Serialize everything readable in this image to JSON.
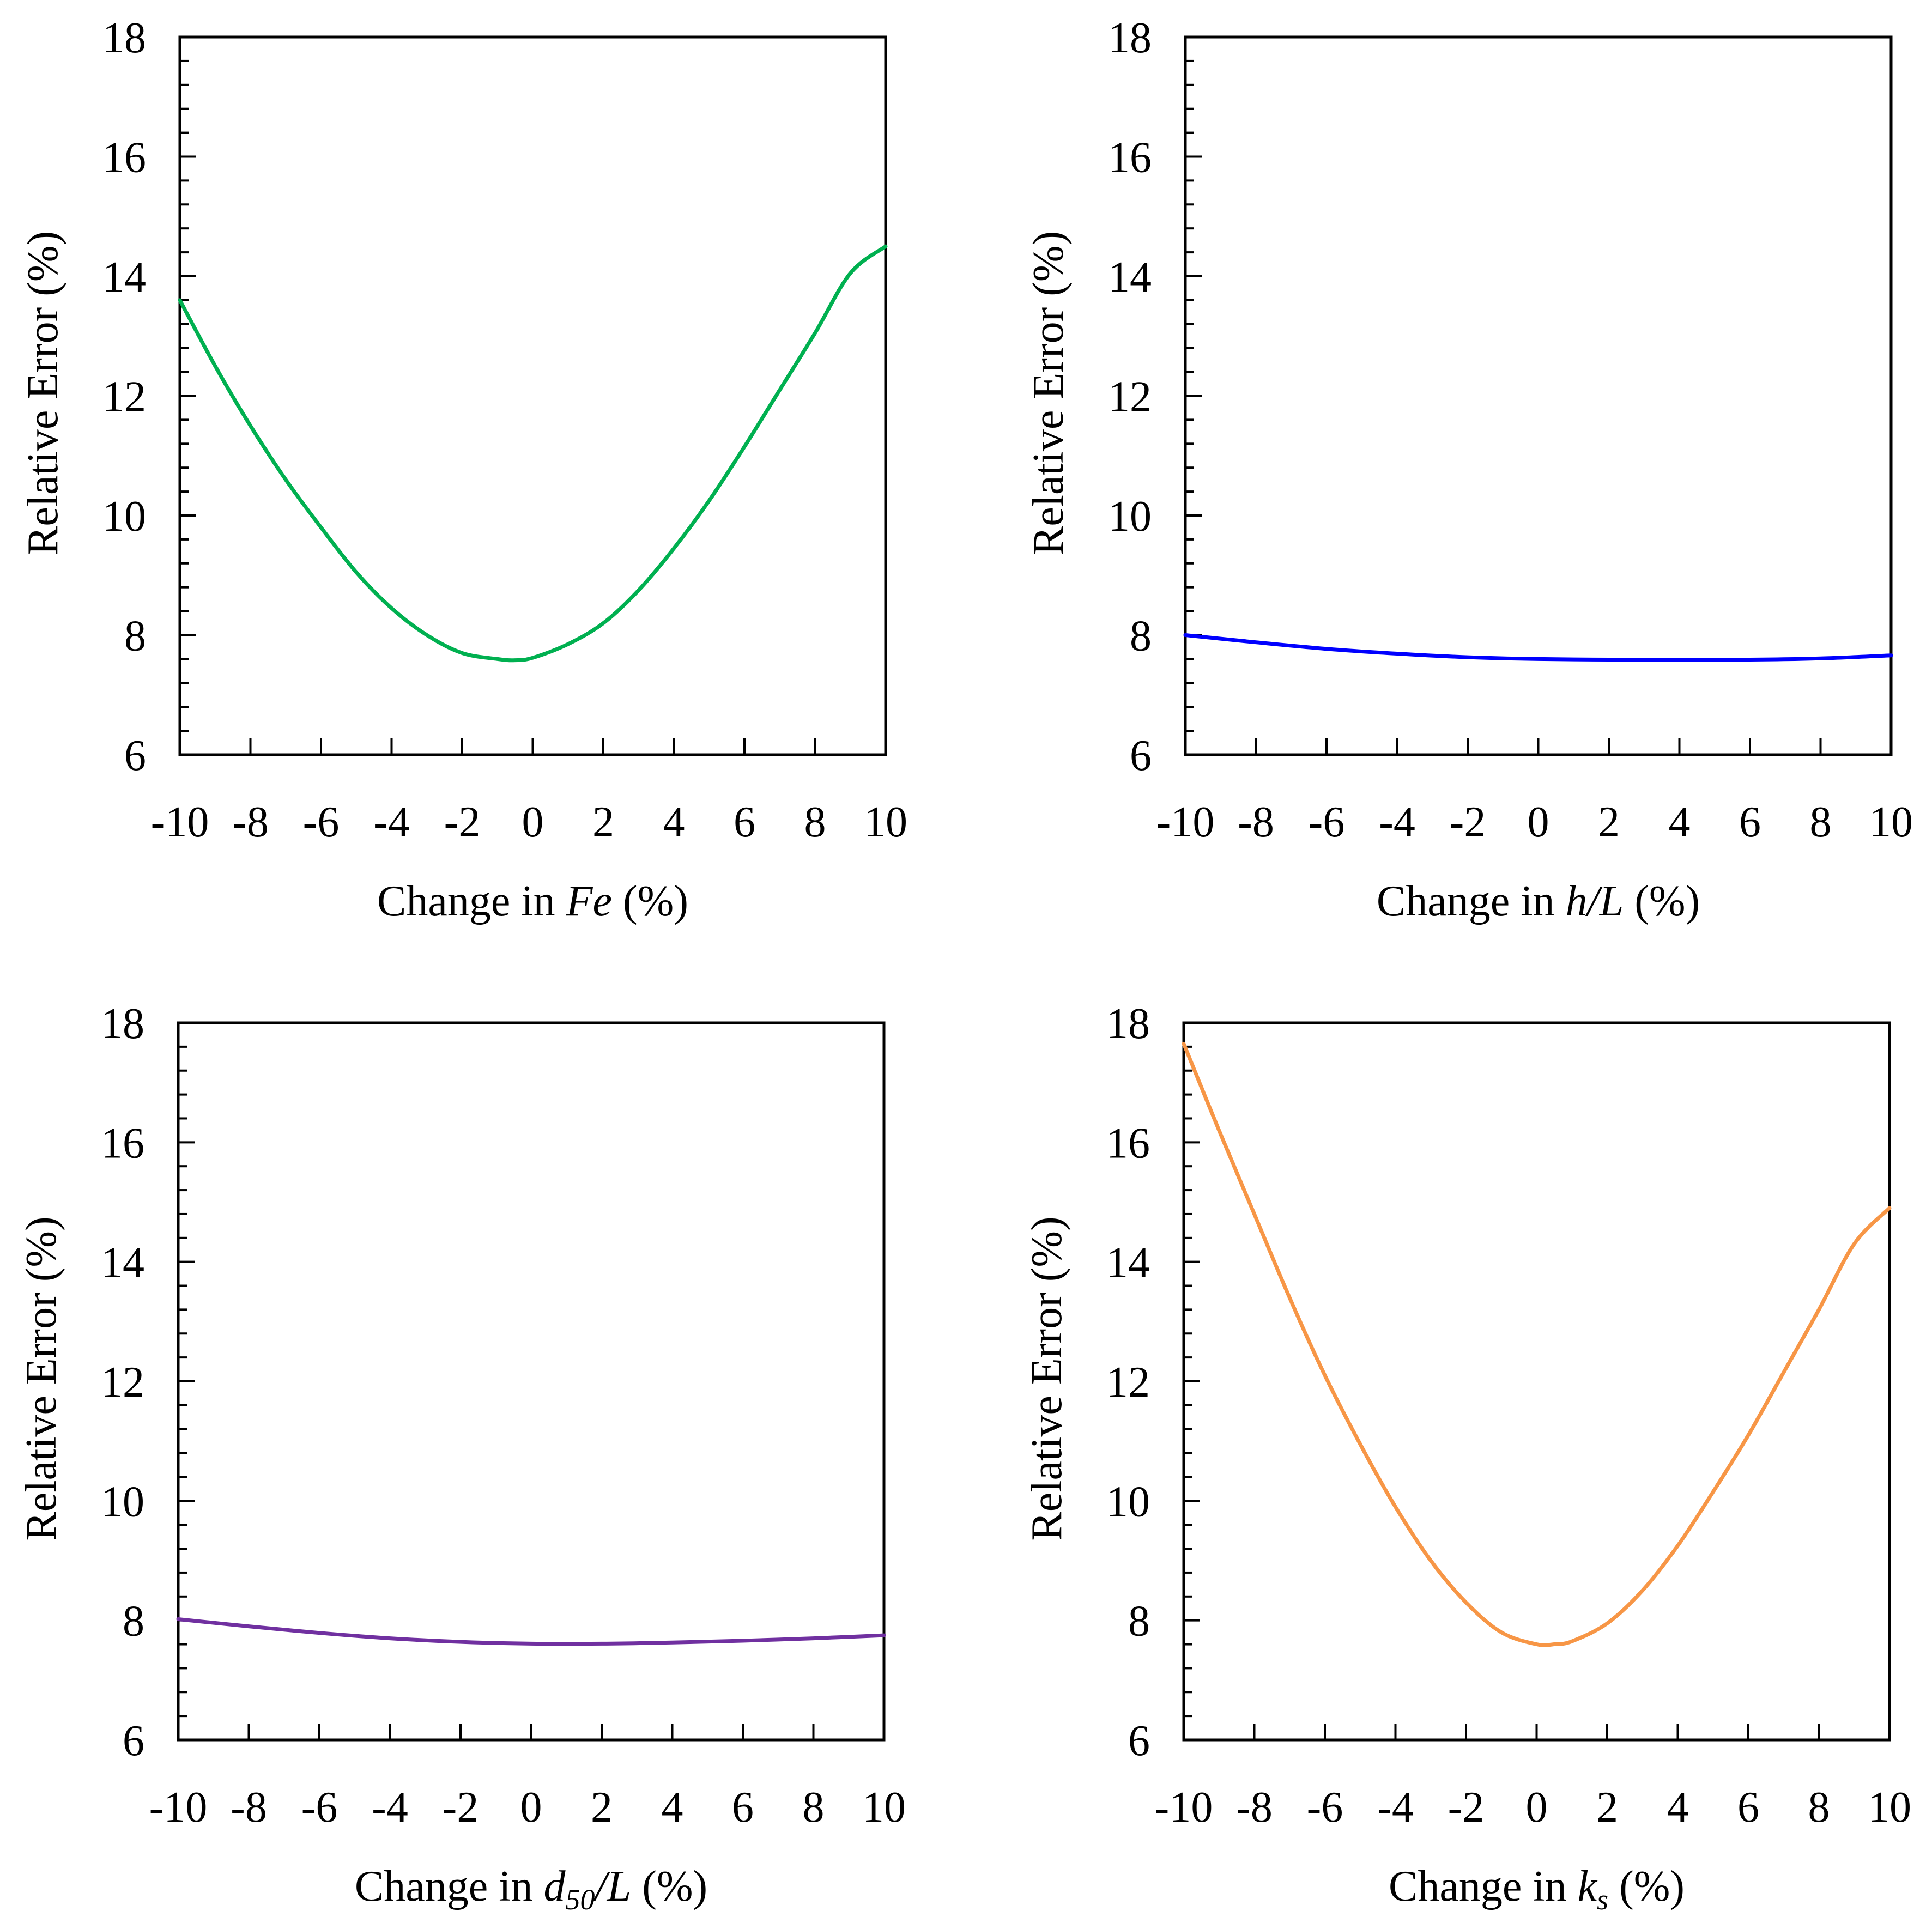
{
  "chart_data": [
    {
      "type": "line",
      "id": "fe",
      "xlabel": "Change in Fe (%)",
      "xlabel_parts": [
        {
          "text": "Change in ",
          "style": "normal"
        },
        {
          "text": "Fe",
          "style": "italic"
        },
        {
          "text": " (%)",
          "style": "normal"
        }
      ],
      "ylabel": "Relative Error (%)",
      "xlim": [
        -10,
        10
      ],
      "ylim": [
        6,
        18
      ],
      "x_ticks": [
        "-10",
        "-8",
        "-6",
        "-4",
        "-2",
        "0",
        "2",
        "4",
        "6",
        "8",
        "10"
      ],
      "y_ticks": [
        "6",
        "8",
        "10",
        "12",
        "14",
        "16",
        "18"
      ],
      "color": "#00B050",
      "series": [
        {
          "name": "Fe",
          "x": [
            -10,
            -9,
            -8,
            -7,
            -6,
            -5,
            -4,
            -3,
            -2,
            -1,
            -0.5,
            0,
            1,
            2,
            3,
            4,
            5,
            6,
            7,
            8,
            9,
            10
          ],
          "y": [
            13.6,
            12.5,
            11.5,
            10.6,
            9.8,
            9.05,
            8.45,
            8.0,
            7.7,
            7.6,
            7.58,
            7.62,
            7.85,
            8.2,
            8.75,
            9.45,
            10.25,
            11.15,
            12.1,
            13.05,
            14.05,
            14.5
          ]
        }
      ]
    },
    {
      "type": "line",
      "id": "hl",
      "xlabel": "Change in h/L (%)",
      "xlabel_parts": [
        {
          "text": "Change in ",
          "style": "normal"
        },
        {
          "text": "h/L",
          "style": "italic"
        },
        {
          "text": " (%)",
          "style": "normal"
        }
      ],
      "ylabel": "Relative Error (%)",
      "xlim": [
        -10,
        10
      ],
      "ylim": [
        6,
        18
      ],
      "x_ticks": [
        "-10",
        "-8",
        "-6",
        "-4",
        "-2",
        "0",
        "2",
        "4",
        "6",
        "8",
        "10"
      ],
      "y_ticks": [
        "6",
        "8",
        "10",
        "12",
        "14",
        "16",
        "18"
      ],
      "color": "#0000FF",
      "series": [
        {
          "name": "h/L",
          "x": [
            -10,
            -8,
            -6,
            -4,
            -2,
            0,
            2,
            4,
            6,
            8,
            10
          ],
          "y": [
            8.0,
            7.88,
            7.77,
            7.69,
            7.63,
            7.6,
            7.59,
            7.59,
            7.59,
            7.61,
            7.66
          ]
        }
      ]
    },
    {
      "type": "line",
      "id": "d50",
      "xlabel": "Change in d50/L (%)",
      "xlabel_parts": [
        {
          "text": "Change in ",
          "style": "normal"
        },
        {
          "text": "d",
          "style": "italic"
        },
        {
          "text": "50",
          "style": "italic-sub"
        },
        {
          "text": "/L",
          "style": "italic"
        },
        {
          "text": " (%)",
          "style": "normal"
        }
      ],
      "ylabel": "Relative Error (%)",
      "xlim": [
        -10,
        10
      ],
      "ylim": [
        6,
        18
      ],
      "x_ticks": [
        "-10",
        "-8",
        "-6",
        "-4",
        "-2",
        "0",
        "2",
        "4",
        "6",
        "8",
        "10"
      ],
      "y_ticks": [
        "6",
        "8",
        "10",
        "12",
        "14",
        "16",
        "18"
      ],
      "color": "#7030A0",
      "series": [
        {
          "name": "d50/L",
          "x": [
            -10,
            -8,
            -6,
            -4,
            -2,
            0,
            2,
            4,
            6,
            8,
            10
          ],
          "y": [
            8.02,
            7.9,
            7.79,
            7.7,
            7.64,
            7.61,
            7.61,
            7.63,
            7.66,
            7.7,
            7.75
          ]
        }
      ]
    },
    {
      "type": "line",
      "id": "ks",
      "xlabel": "Change in ks (%)",
      "xlabel_parts": [
        {
          "text": "Change in ",
          "style": "normal"
        },
        {
          "text": "k",
          "style": "italic"
        },
        {
          "text": "s",
          "style": "italic-sub"
        },
        {
          "text": " (%)",
          "style": "normal"
        }
      ],
      "ylabel": "Relative Error (%)",
      "xlim": [
        -10,
        10
      ],
      "ylim": [
        6,
        18
      ],
      "x_ticks": [
        "-10",
        "-8",
        "-6",
        "-4",
        "-2",
        "0",
        "2",
        "4",
        "6",
        "8",
        "10"
      ],
      "y_ticks": [
        "6",
        "8",
        "10",
        "12",
        "14",
        "16",
        "18"
      ],
      "color": "#F79646",
      "series": [
        {
          "name": "ks",
          "x": [
            -10,
            -9,
            -8,
            -7,
            -6,
            -5,
            -4,
            -3,
            -2,
            -1,
            0,
            0.5,
            1,
            2,
            3,
            4,
            5,
            6,
            7,
            8,
            9,
            10
          ],
          "y": [
            17.65,
            16.2,
            14.8,
            13.4,
            12.1,
            10.95,
            9.9,
            9.0,
            8.3,
            7.8,
            7.6,
            7.6,
            7.65,
            7.95,
            8.5,
            9.25,
            10.15,
            11.1,
            12.15,
            13.2,
            14.3,
            14.9
          ]
        }
      ]
    }
  ]
}
